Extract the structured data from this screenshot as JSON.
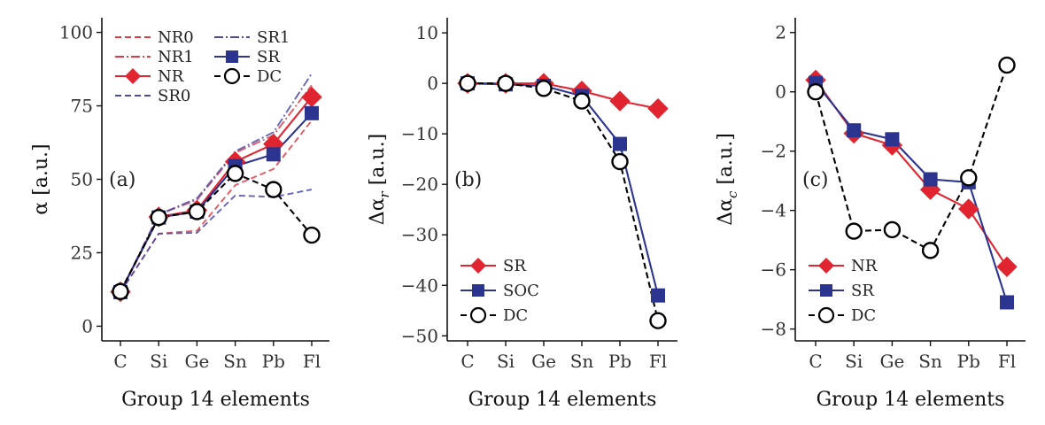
{
  "chart_data": [
    {
      "type": "line",
      "panel_label": "(a)",
      "categories": [
        "C",
        "Si",
        "Ge",
        "Sn",
        "Pb",
        "Fl"
      ],
      "xlabel": "Group 14 elements",
      "ylabel": "α [a.u.]",
      "ylim": [
        -5,
        105
      ],
      "yticks": [
        0,
        25,
        50,
        75,
        100
      ],
      "legend_position": "top-left",
      "series": [
        {
          "name": "NR0",
          "color": "#e03c46",
          "style": "dashed",
          "marker": "none",
          "values": [
            11.5,
            31.5,
            32.5,
            48.0,
            53.5,
            70.0
          ]
        },
        {
          "name": "NR1",
          "color": "#e03c46",
          "style": "dashdot",
          "marker": "none",
          "values": [
            11.5,
            38.0,
            43.0,
            59.0,
            65.0,
            82.0
          ]
        },
        {
          "name": "NR",
          "color": "#e02530",
          "style": "solid",
          "marker": "diamond",
          "values": [
            11.7,
            37.2,
            39.5,
            56.0,
            62.0,
            78.0
          ]
        },
        {
          "name": "SR0",
          "color": "#4a4aa8",
          "style": "dashed",
          "marker": "none",
          "values": [
            11.5,
            31.5,
            31.8,
            44.5,
            44.0,
            46.5
          ]
        },
        {
          "name": "SR1",
          "color": "#4a4aa8",
          "style": "dashdot",
          "marker": "none",
          "values": [
            11.5,
            38.0,
            43.5,
            59.5,
            66.0,
            86.0
          ]
        },
        {
          "name": "SR",
          "color": "#2b3590",
          "style": "solid",
          "marker": "square",
          "values": [
            11.6,
            37.0,
            39.0,
            54.5,
            58.5,
            72.5
          ]
        },
        {
          "name": "DC",
          "color": "#000000",
          "style": "dashed",
          "marker": "circle",
          "values": [
            11.8,
            37.0,
            39.0,
            52.0,
            46.5,
            31.0
          ]
        }
      ]
    },
    {
      "type": "line",
      "panel_label": "(b)",
      "categories": [
        "C",
        "Si",
        "Ge",
        "Sn",
        "Pb",
        "Fl"
      ],
      "xlabel": "Group 14 elements",
      "ylabel": "Δα_r [a.u.]",
      "ylabel_main": "Δα",
      "ylabel_sub": "r",
      "ylabel_unit": " [a.u.]",
      "ylim": [
        -51,
        13
      ],
      "yticks": [
        10,
        0,
        -10,
        -20,
        -30,
        -40,
        -50
      ],
      "legend_position": "bottom-left",
      "series": [
        {
          "name": "SR",
          "color": "#e02530",
          "style": "solid",
          "marker": "diamond",
          "values": [
            0.0,
            0.0,
            0.0,
            -1.5,
            -3.5,
            -5.0
          ]
        },
        {
          "name": "SOC",
          "color": "#2b3590",
          "style": "solid",
          "marker": "square",
          "values": [
            0.0,
            -0.2,
            -0.5,
            -2.5,
            -12.0,
            -42.0
          ]
        },
        {
          "name": "DC",
          "color": "#000000",
          "style": "dashed",
          "marker": "circle",
          "values": [
            0.0,
            0.0,
            -1.0,
            -3.5,
            -15.5,
            -47.0
          ]
        }
      ]
    },
    {
      "type": "line",
      "panel_label": "(c)",
      "categories": [
        "C",
        "Si",
        "Ge",
        "Sn",
        "Pb",
        "Fl"
      ],
      "xlabel": "Group 14 elements",
      "ylabel": "Δα_c [a.u.]",
      "ylabel_main": "Δα",
      "ylabel_sub": "c",
      "ylabel_unit": " [a.u.]",
      "ylim": [
        -8.4,
        2.5
      ],
      "yticks": [
        2,
        0,
        -2,
        -4,
        -6,
        -8
      ],
      "legend_position": "bottom-left",
      "series": [
        {
          "name": "NR",
          "color": "#e02530",
          "style": "solid",
          "marker": "diamond",
          "values": [
            0.4,
            -1.4,
            -1.8,
            -3.3,
            -3.95,
            -5.9
          ]
        },
        {
          "name": "SR",
          "color": "#2b3590",
          "style": "solid",
          "marker": "square",
          "values": [
            0.3,
            -1.3,
            -1.6,
            -2.95,
            -3.05,
            -7.1
          ]
        },
        {
          "name": "DC",
          "color": "#000000",
          "style": "dashed",
          "marker": "circle",
          "values": [
            0.0,
            -4.7,
            -4.65,
            -5.35,
            -2.9,
            0.9
          ]
        }
      ]
    }
  ]
}
